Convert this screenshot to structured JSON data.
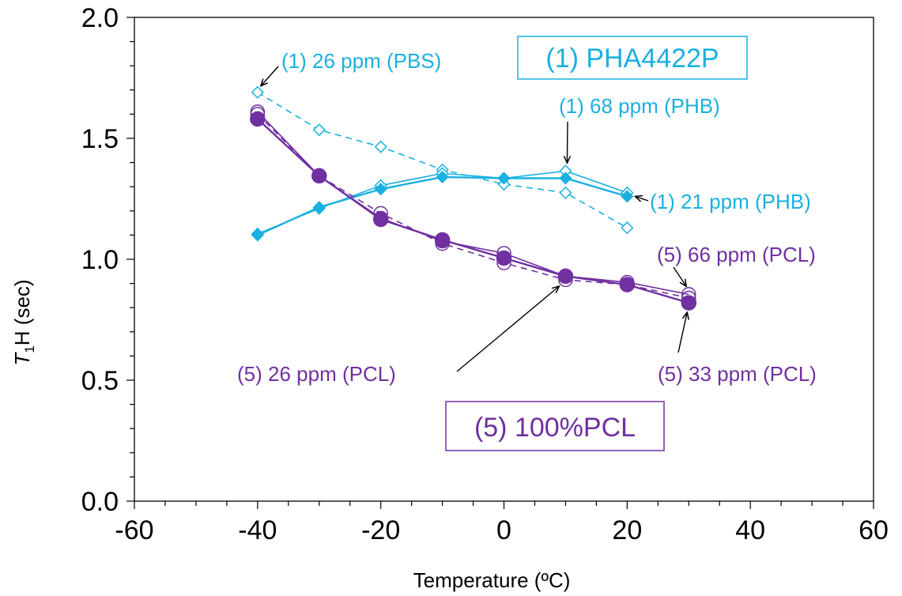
{
  "chart_data": {
    "type": "line",
    "xlabel": "Temperature (ºC)",
    "ylabel": "T₁H (sec)",
    "xlim": [
      -60,
      60
    ],
    "ylim": [
      0.0,
      2.0
    ],
    "x_ticks": [
      "-60",
      "-40",
      "-20",
      "0",
      "20",
      "40",
      "60"
    ],
    "y_ticks": [
      "0.0",
      "0.5",
      "1.0",
      "1.5",
      "2.0"
    ],
    "colors": {
      "pha": "#1ab0e0",
      "pcl": "#7030a0",
      "arrow": "#000000"
    },
    "series": [
      {
        "group": "(1) PHA4422P",
        "label": "(1) 26 ppm (PBS)",
        "color": "#1ab0e0",
        "marker": "diamond-open",
        "line": "dashed",
        "x": [
          -40,
          -30,
          -20,
          -10,
          0,
          10,
          20
        ],
        "y": [
          1.69,
          1.535,
          1.465,
          1.37,
          1.31,
          1.275,
          1.13
        ]
      },
      {
        "group": "(1) PHA4422P",
        "label": "(1) 68 ppm (PHB)",
        "color": "#1ab0e0",
        "marker": "diamond-open",
        "line": "solid",
        "x": [
          -40,
          -30,
          -20,
          -10,
          0,
          10,
          20
        ],
        "y": [
          1.105,
          1.21,
          1.305,
          1.355,
          1.335,
          1.365,
          1.275
        ]
      },
      {
        "group": "(1) PHA4422P",
        "label": "(1) 21 ppm (PHB)",
        "color": "#1ab0e0",
        "marker": "diamond-filled",
        "line": "solid",
        "x": [
          -40,
          -30,
          -20,
          -10,
          0,
          10,
          20
        ],
        "y": [
          1.1,
          1.215,
          1.29,
          1.34,
          1.335,
          1.335,
          1.26
        ]
      },
      {
        "group": "(5) 100%PCL",
        "label": "(5) 26 ppm (PCL)",
        "color": "#7030a0",
        "marker": "circle-open",
        "line": "dashed",
        "x": [
          -40,
          -30,
          -20,
          -10,
          0,
          10,
          20,
          30
        ],
        "y": [
          1.6,
          1.345,
          1.19,
          1.065,
          0.985,
          0.915,
          0.895,
          0.84
        ]
      },
      {
        "group": "(5) 100%PCL",
        "label": "(5) 66 ppm (PCL)",
        "color": "#7030a0",
        "marker": "circle-open",
        "line": "solid",
        "x": [
          -40,
          -30,
          -20,
          -10,
          0,
          10,
          20,
          30
        ],
        "y": [
          1.61,
          1.345,
          1.17,
          1.075,
          1.025,
          0.93,
          0.905,
          0.855
        ]
      },
      {
        "group": "(5) 100%PCL",
        "label": "(5) 33 ppm (PCL)",
        "color": "#7030a0",
        "marker": "circle-filled",
        "line": "solid",
        "x": [
          -40,
          -30,
          -20,
          -10,
          0,
          10,
          20,
          30
        ],
        "y": [
          1.58,
          1.345,
          1.165,
          1.08,
          1.005,
          0.93,
          0.895,
          0.82
        ]
      }
    ],
    "annotations": [
      {
        "text": "(1) 26 ppm (PBS)",
        "color": "#1ab0e0",
        "at_x": -40,
        "at_y": 1.69
      },
      {
        "text": "(1) 68 ppm (PHB)",
        "color": "#1ab0e0",
        "at_x": 10,
        "at_y": 1.365
      },
      {
        "text": "(1) 21 ppm (PHB)",
        "color": "#1ab0e0",
        "at_x": 20,
        "at_y": 1.26
      },
      {
        "text": "(5) 66 ppm (PCL)",
        "color": "#7030a0",
        "at_x": 30,
        "at_y": 0.855
      },
      {
        "text": "(5) 26 ppm (PCL)",
        "color": "#7030a0",
        "at_x": 10,
        "at_y": 0.915
      },
      {
        "text": "(5) 33 ppm (PCL)",
        "color": "#7030a0",
        "at_x": 30,
        "at_y": 0.82
      }
    ],
    "group_labels": [
      {
        "text": "(1) PHA4422P",
        "color": "#1ab0e0"
      },
      {
        "text": "(5) 100%PCL",
        "color": "#7030a0"
      }
    ],
    "grid": false,
    "legend": "none"
  }
}
